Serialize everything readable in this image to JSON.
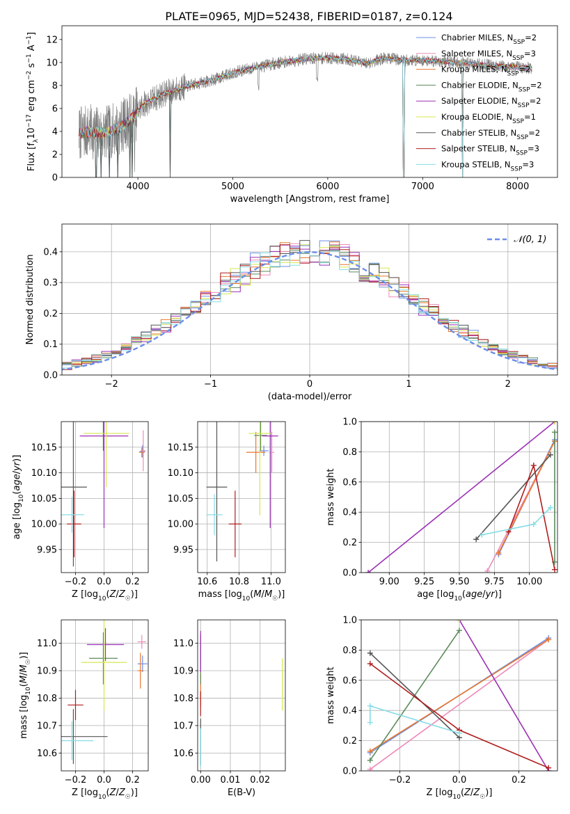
{
  "figure_title": "PLATE=0965, MJD=52438, FIBERID=0187, z=0.124",
  "series_styles": [
    {
      "name": "Chabrier MILES, N_SSP=2",
      "label_main": "Chabrier MILES, N",
      "label_sub": "SSP",
      "label_tail": "=2",
      "color": "#6b8ee8"
    },
    {
      "name": "Salpeter MILES, N_SSP=3",
      "label_main": "Salpeter MILES, N",
      "label_sub": "SSP",
      "label_tail": "=3",
      "color": "#ee8ab8"
    },
    {
      "name": "Kroupa MILES, N_SSP=2",
      "label_main": "Kroupa MILES, N",
      "label_sub": "SSP",
      "label_tail": "=2",
      "color": "#e9772c"
    },
    {
      "name": "Chabrier ELODIE, N_SSP=2",
      "label_main": "Chabrier ELODIE, N",
      "label_sub": "SSP",
      "label_tail": "=2",
      "color": "#5a8a5a"
    },
    {
      "name": "Salpeter ELODIE, N_SSP=2",
      "label_main": "Salpeter ELODIE, N",
      "label_sub": "SSP",
      "label_tail": "=2",
      "color": "#9b2fb6"
    },
    {
      "name": "Kroupa ELODIE, N_SSP=1",
      "label_main": "Kroupa ELODIE, N",
      "label_sub": "SSP",
      "label_tail": "=1",
      "color": "#d3e84e"
    },
    {
      "name": "Chabrier STELIB, N_SSP=2",
      "label_main": "Chabrier STELIB, N",
      "label_sub": "SSP",
      "label_tail": "=2",
      "color": "#555555"
    },
    {
      "name": "Salpeter STELIB, N_SSP=3",
      "label_main": "Salpeter STELIB, N",
      "label_sub": "SSP",
      "label_tail": "=3",
      "color": "#b01d1d"
    },
    {
      "name": "Kroupa STELIB, N_SSP=3",
      "label_main": "Kroupa STELIB, N",
      "label_sub": "SSP",
      "label_tail": "=3",
      "color": "#86dde6"
    }
  ],
  "data_color": "#808080",
  "chart_data": [
    {
      "id": "spectrum",
      "type": "line",
      "title": "PLATE=0965, MJD=52438, FIBERID=0187, z=0.124",
      "xlabel": "wavelength [Angstrom, rest frame]",
      "ylabel": "Flux [f_λ 10^-17 erg cm^-2 s^-1 A^-1]",
      "xlim": [
        3200,
        8420
      ],
      "ylim": [
        0,
        13.2
      ],
      "xticks": [
        4000,
        5000,
        6000,
        7000,
        8000
      ],
      "yticks": [
        0,
        2,
        4,
        6,
        8,
        10,
        12
      ],
      "x_range_data": [
        3380,
        8150
      ],
      "continuum_knots": [
        [
          3380,
          3.8
        ],
        [
          3500,
          4.0
        ],
        [
          3650,
          3.8
        ],
        [
          3800,
          4.3
        ],
        [
          3950,
          5.2
        ],
        [
          4050,
          6.3
        ],
        [
          4250,
          7.2
        ],
        [
          4500,
          7.9
        ],
        [
          4800,
          8.5
        ],
        [
          5000,
          9.1
        ],
        [
          5200,
          9.5
        ],
        [
          5500,
          10.0
        ],
        [
          5750,
          10.3
        ],
        [
          6000,
          10.4
        ],
        [
          6200,
          10.3
        ],
        [
          6400,
          9.9
        ],
        [
          6600,
          10.4
        ],
        [
          6800,
          10.2
        ],
        [
          7000,
          10.2
        ],
        [
          7200,
          10.1
        ],
        [
          7500,
          9.9
        ],
        [
          7800,
          9.7
        ],
        [
          8150,
          9.5
        ]
      ],
      "model_dips": [
        [
          3560,
          0
        ],
        [
          3610,
          0
        ],
        [
          3700,
          0
        ],
        [
          3790,
          0
        ],
        [
          3915,
          0
        ],
        [
          3940,
          0
        ],
        [
          4340,
          0
        ],
        [
          6800,
          0
        ],
        [
          7420,
          0
        ]
      ],
      "grid": false,
      "legend": "top-right"
    },
    {
      "id": "residuals",
      "type": "histogram",
      "xlabel": "(data-model)/error",
      "ylabel": "Normed distribution",
      "xlim": [
        -2.5,
        2.5
      ],
      "ylim": [
        0,
        0.49
      ],
      "xticks": [
        -2,
        -1,
        0,
        1,
        2
      ],
      "yticks": [
        0.0,
        0.1,
        0.2,
        0.3,
        0.4
      ],
      "bin_width": 0.1,
      "reference_curve": {
        "name": "N(0,1)",
        "legend_label": "𝒩(0, 1)",
        "mean": 0,
        "sigma": 1,
        "color": "#6b8ee8",
        "style": "dashed"
      },
      "grid": true,
      "legend": "top-right"
    },
    {
      "id": "age_vs_Z",
      "type": "errorbar",
      "xlabel": "Z [log10(Z/Z☉)]",
      "ylabel": "age [log10(age/yr)]",
      "xlim": [
        -0.3,
        0.31
      ],
      "ylim": [
        9.905,
        10.2
      ],
      "xticks": [
        -0.2,
        0.0,
        0.2
      ],
      "yticks": [
        9.95,
        10.0,
        10.05,
        10.1,
        10.15
      ],
      "points": [
        {
          "series": "Chabrier MILES, N_SSP=2",
          "x": 0.27,
          "y": 10.142,
          "xerr": 0.02,
          "yerr": 0.012
        },
        {
          "series": "Salpeter MILES, N_SSP=3",
          "x": 0.275,
          "y": 10.143,
          "xerr": 0.015,
          "yerr": 0.04
        },
        {
          "series": "Kroupa MILES, N_SSP=2",
          "x": 0.265,
          "y": 10.14,
          "xerr": 0.02,
          "yerr": 0.01
        },
        {
          "series": "Chabrier ELODIE, N_SSP=2",
          "x": -0.005,
          "y": 10.173,
          "xerr": 0.0,
          "yerr": 0.03
        },
        {
          "series": "Salpeter ELODIE, N_SSP=2",
          "x": 0.0,
          "y": 10.172,
          "xerr": 0.17,
          "yerr": 0.18
        },
        {
          "series": "Kroupa ELODIE, N_SSP=1",
          "x": 0.015,
          "y": 10.177,
          "xerr": 0.16,
          "yerr": 0.105
        },
        {
          "series": "Chabrier STELIB, N_SSP=2",
          "x": -0.215,
          "y": 10.072,
          "xerr": 0.095,
          "yerr": 0.155
        },
        {
          "series": "Salpeter STELIB, N_SSP=3",
          "x": -0.21,
          "y": 10.0,
          "xerr": 0.05,
          "yerr": 0.065
        },
        {
          "series": "Kroupa STELIB, N_SSP=3",
          "x": -0.225,
          "y": 10.018,
          "xerr": 0.085,
          "yerr": 0.035
        }
      ],
      "grid": true
    },
    {
      "id": "age_vs_mass",
      "type": "errorbar",
      "xlabel": "mass [log10(M/M☉)]",
      "ylabel": "",
      "xlim": [
        10.54,
        11.09
      ],
      "ylim": [
        9.905,
        10.2
      ],
      "xticks": [
        10.6,
        10.8,
        11.0
      ],
      "yticks": [
        9.95,
        10.0,
        10.05,
        10.1,
        10.15
      ],
      "points": [
        {
          "series": "Chabrier MILES, N_SSP=2",
          "x": 10.955,
          "y": 10.143,
          "xerr": 0.03,
          "yerr": 0.01
        },
        {
          "series": "Salpeter MILES, N_SSP=3",
          "x": 11.005,
          "y": 10.14,
          "xerr": 0.015,
          "yerr": 0.04
        },
        {
          "series": "Kroupa MILES, N_SSP=2",
          "x": 10.905,
          "y": 10.14,
          "xerr": 0.06,
          "yerr": 0.04
        },
        {
          "series": "Chabrier ELODIE, N_SSP=2",
          "x": 10.935,
          "y": 10.173,
          "xerr": 0.04,
          "yerr": 0.03
        },
        {
          "series": "Salpeter ELODIE, N_SSP=2",
          "x": 10.995,
          "y": 10.172,
          "xerr": 0.05,
          "yerr": 0.18
        },
        {
          "series": "Kroupa ELODIE, N_SSP=1",
          "x": 10.93,
          "y": 10.177,
          "xerr": 0.07,
          "yerr": 0.16
        },
        {
          "series": "Chabrier STELIB, N_SSP=2",
          "x": 10.66,
          "y": 10.072,
          "xerr": 0.065,
          "yerr": 0.145
        },
        {
          "series": "Salpeter STELIB, N_SSP=3",
          "x": 10.775,
          "y": 10.0,
          "xerr": 0.04,
          "yerr": 0.065
        },
        {
          "series": "Kroupa STELIB, N_SSP=3",
          "x": 10.645,
          "y": 10.018,
          "xerr": 0.05,
          "yerr": 0.04
        }
      ],
      "grid": true
    },
    {
      "id": "weight_vs_age",
      "type": "line",
      "xlabel": "age [log10(age/yr)]",
      "ylabel": "mass weight",
      "xlim": [
        8.8,
        10.2
      ],
      "ylim": [
        0.0,
        1.0
      ],
      "xticks": [
        9.0,
        9.25,
        9.5,
        9.75,
        10.0
      ],
      "yticks": [
        0.0,
        0.2,
        0.4,
        0.6,
        0.8,
        1.0
      ],
      "series": [
        {
          "name": "Chabrier MILES, N_SSP=2",
          "x": [
            9.78,
            10.18
          ],
          "y": [
            0.12,
            0.88
          ]
        },
        {
          "name": "Salpeter MILES, N_SSP=3",
          "x": [
            9.7,
            10.18
          ],
          "y": [
            0.01,
            0.87
          ]
        },
        {
          "name": "Kroupa MILES, N_SSP=2",
          "x": [
            9.78,
            10.18
          ],
          "y": [
            0.13,
            0.87
          ]
        },
        {
          "name": "Chabrier ELODIE, N_SSP=2",
          "x": [
            10.18,
            10.18
          ],
          "y": [
            0.07,
            0.93
          ]
        },
        {
          "name": "Salpeter ELODIE, N_SSP=2",
          "x": [
            8.85,
            10.18
          ],
          "y": [
            0.0,
            1.0
          ]
        },
        {
          "name": "Kroupa ELODIE, N_SSP=1",
          "x": [
            10.18
          ],
          "y": [
            1.0
          ]
        },
        {
          "name": "Chabrier STELIB, N_SSP=2",
          "x": [
            9.62,
            10.15
          ],
          "y": [
            0.22,
            0.78
          ]
        },
        {
          "name": "Salpeter STELIB, N_SSP=3",
          "x": [
            9.85,
            10.03,
            10.18
          ],
          "y": [
            0.27,
            0.71,
            0.02
          ]
        },
        {
          "name": "Kroupa STELIB, N_SSP=3",
          "x": [
            9.66,
            10.03,
            10.15
          ],
          "y": [
            0.25,
            0.32,
            0.43
          ]
        }
      ],
      "grid": true
    },
    {
      "id": "mass_vs_Z",
      "type": "errorbar",
      "xlabel": "Z [log10(Z/Z☉)]",
      "ylabel": "mass [log10(M/M☉)]",
      "xlim": [
        -0.3,
        0.31
      ],
      "ylim": [
        10.535,
        11.085
      ],
      "xticks": [
        -0.2,
        0.0,
        0.2
      ],
      "yticks": [
        10.6,
        10.7,
        10.8,
        10.9,
        11.0
      ],
      "points": [
        {
          "series": "Chabrier MILES, N_SSP=2",
          "x": 0.27,
          "y": 10.925,
          "xerr": 0.035,
          "yerr": 0.03
        },
        {
          "series": "Salpeter MILES, N_SSP=3",
          "x": 0.265,
          "y": 11.005,
          "xerr": 0.03,
          "yerr": 0.025
        },
        {
          "series": "Kroupa MILES, N_SSP=2",
          "x": 0.255,
          "y": 10.9,
          "xerr": 0.02,
          "yerr": 0.065
        },
        {
          "series": "Chabrier ELODIE, N_SSP=2",
          "x": -0.005,
          "y": 10.945,
          "xerr": 0.1,
          "yerr": 0.095
        },
        {
          "series": "Salpeter ELODIE, N_SSP=2",
          "x": 0.01,
          "y": 10.995,
          "xerr": 0.13,
          "yerr": 0.06
        },
        {
          "series": "Kroupa ELODIE, N_SSP=1",
          "x": 0.0,
          "y": 10.93,
          "xerr": 0.16,
          "yerr": 0.175
        },
        {
          "series": "Chabrier STELIB, N_SSP=2",
          "x": -0.215,
          "y": 10.66,
          "xerr": 0.24,
          "yerr": 0.1
        },
        {
          "series": "Salpeter STELIB, N_SSP=3",
          "x": -0.2,
          "y": 10.775,
          "xerr": 0.055,
          "yerr": 0.055
        },
        {
          "series": "Kroupa STELIB, N_SSP=3",
          "x": -0.225,
          "y": 10.645,
          "xerr": 0.15,
          "yerr": 0.07
        }
      ],
      "grid": true
    },
    {
      "id": "mass_vs_ebv",
      "type": "errorbar",
      "xlabel": "E(B-V)",
      "ylabel": "",
      "xlim": [
        -0.001,
        0.0285
      ],
      "ylim": [
        10.535,
        11.085
      ],
      "xticks": [
        0.0,
        0.01,
        0.02
      ],
      "xticklabels": [
        "0.00",
        "0.01",
        "0.02"
      ],
      "yticks": [
        10.6,
        10.7,
        10.8,
        10.9,
        11.0
      ],
      "points": [
        {
          "series": "Chabrier MILES, N_SSP=2",
          "x": 0.0,
          "y": 10.95,
          "xerr": 0.0,
          "yerr": 0.02
        },
        {
          "series": "Salpeter MILES, N_SSP=3",
          "x": 0.0,
          "y": 11.0,
          "xerr": 0.0,
          "yerr": 0.03
        },
        {
          "series": "Kroupa MILES, N_SSP=2",
          "x": 0.0,
          "y": 10.83,
          "xerr": 0.0,
          "yerr": 0.06
        },
        {
          "series": "Chabrier ELODIE, N_SSP=2",
          "x": 0.0,
          "y": 10.94,
          "xerr": 0.0,
          "yerr": 0.09
        },
        {
          "series": "Salpeter ELODIE, N_SSP=2",
          "x": 0.0,
          "y": 10.97,
          "xerr": 0.0,
          "yerr": 0.075
        },
        {
          "series": "Kroupa ELODIE, N_SSP=1",
          "x": 0.0275,
          "y": 10.85,
          "xerr": 0.0,
          "yerr": 0.095
        },
        {
          "series": "Chabrier STELIB, N_SSP=2",
          "x": 0.0,
          "y": 10.64,
          "xerr": 0.0,
          "yerr": 0.085
        },
        {
          "series": "Salpeter STELIB, N_SSP=3",
          "x": 0.0,
          "y": 10.78,
          "xerr": 0.0,
          "yerr": 0.045
        },
        {
          "series": "Kroupa STELIB, N_SSP=3",
          "x": 0.0,
          "y": 10.62,
          "xerr": 0.0,
          "yerr": 0.07
        }
      ],
      "grid": true
    },
    {
      "id": "weight_vs_Z",
      "type": "line",
      "xlabel": "Z [log10(Z/Z☉)]",
      "ylabel": "mass weight",
      "xlim": [
        -0.33,
        0.33
      ],
      "ylim": [
        0.0,
        1.0
      ],
      "xticks": [
        -0.2,
        0.0,
        0.2
      ],
      "yticks": [
        0.0,
        0.2,
        0.4,
        0.6,
        0.8,
        1.0
      ],
      "series": [
        {
          "name": "Chabrier MILES, N_SSP=2",
          "x": [
            -0.3,
            0.3
          ],
          "y": [
            0.12,
            0.88
          ]
        },
        {
          "name": "Salpeter MILES, N_SSP=3",
          "x": [
            -0.3,
            0.3
          ],
          "y": [
            0.01,
            0.87
          ]
        },
        {
          "name": "Kroupa MILES, N_SSP=2",
          "x": [
            -0.3,
            0.3
          ],
          "y": [
            0.13,
            0.87
          ]
        },
        {
          "name": "Chabrier ELODIE, N_SSP=2",
          "x": [
            -0.3,
            0.0
          ],
          "y": [
            0.07,
            0.93
          ]
        },
        {
          "name": "Salpeter ELODIE, N_SSP=2",
          "x": [
            0.0,
            0.3
          ],
          "y": [
            1.0,
            0.0
          ]
        },
        {
          "name": "Kroupa ELODIE, N_SSP=1",
          "x": [
            0.0
          ],
          "y": [
            1.0
          ]
        },
        {
          "name": "Chabrier STELIB, N_SSP=2",
          "x": [
            -0.3,
            0.0
          ],
          "y": [
            0.78,
            0.22
          ]
        },
        {
          "name": "Salpeter STELIB, N_SSP=3",
          "x": [
            -0.3,
            0.0,
            0.3
          ],
          "y": [
            0.71,
            0.27,
            0.02
          ]
        },
        {
          "name": "Kroupa STELIB, N_SSP=3",
          "x": [
            -0.3,
            -0.3,
            0.0
          ],
          "y": [
            0.32,
            0.43,
            0.25
          ]
        }
      ],
      "grid": true
    }
  ]
}
